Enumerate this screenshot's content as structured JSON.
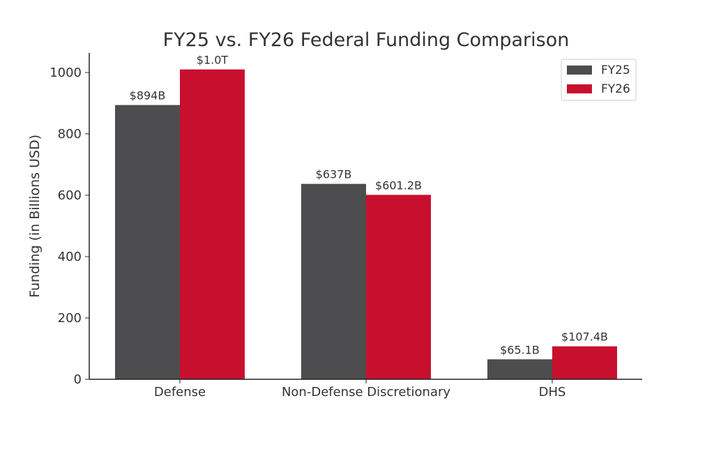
{
  "chart_data": {
    "type": "bar",
    "title": "FY25 vs. FY26 Federal Funding Comparison",
    "xlabel": "",
    "ylabel": "Funding (in Billions USD)",
    "categories": [
      "Defense",
      "Non-Defense Discretionary",
      "DHS"
    ],
    "series": [
      {
        "name": "FY25",
        "color": "#4d4d4f",
        "values": [
          894,
          637,
          65.1
        ],
        "labels": [
          "$894B",
          "$637B",
          "$65.1B"
        ]
      },
      {
        "name": "FY26",
        "color": "#c8102e",
        "values": [
          1010,
          601.2,
          107.4
        ],
        "labels": [
          "$1.0T",
          "$601.2B",
          "$107.4B"
        ]
      }
    ],
    "ylim": [
      0,
      1064
    ],
    "yticks": [
      0,
      200,
      400,
      600,
      800,
      1000
    ],
    "grid": false,
    "legend_position": "top-right"
  }
}
